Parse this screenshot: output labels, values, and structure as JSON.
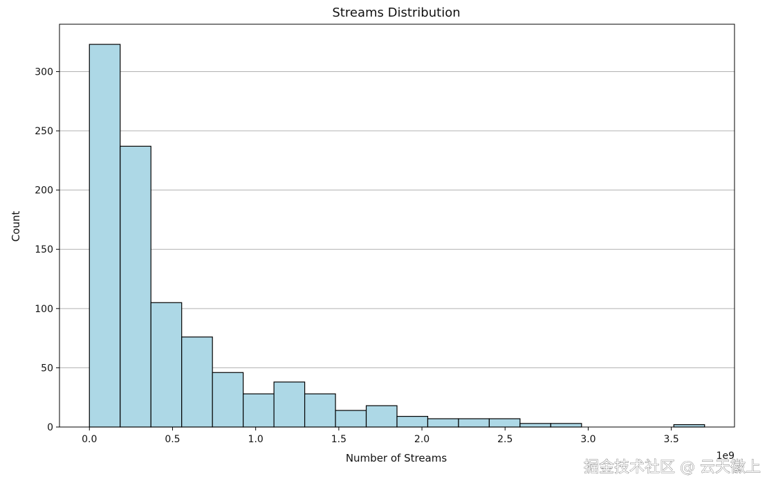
{
  "chart_data": {
    "type": "bar",
    "title": "Streams Distribution",
    "xlabel": "Number of Streams",
    "ylabel": "Count",
    "x_offset_label": "1e9",
    "bin_edges": [
      0.0,
      0.185,
      0.37,
      0.555,
      0.74,
      0.925,
      1.11,
      1.295,
      1.48,
      1.665,
      1.85,
      2.035,
      2.22,
      2.405,
      2.59,
      2.775,
      2.96,
      3.145,
      3.33,
      3.515,
      3.7
    ],
    "counts": [
      323,
      237,
      105,
      76,
      46,
      28,
      38,
      28,
      14,
      18,
      9,
      7,
      7,
      7,
      3,
      3,
      0,
      0,
      0,
      2
    ],
    "xlim": [
      -0.18,
      3.88
    ],
    "ylim": [
      0,
      340
    ],
    "x_ticks": [
      0.0,
      0.5,
      1.0,
      1.5,
      2.0,
      2.5,
      3.0,
      3.5
    ],
    "x_tick_labels": [
      "0.0",
      "0.5",
      "1.0",
      "1.5",
      "2.0",
      "2.5",
      "3.0",
      "3.5"
    ],
    "y_ticks": [
      0,
      50,
      100,
      150,
      200,
      250,
      300
    ],
    "y_tick_labels": [
      "0",
      "50",
      "100",
      "150",
      "200",
      "250",
      "300"
    ],
    "grid": "y",
    "bar_color": "#add8e6",
    "edge_color": "#000000",
    "grid_color": "#b0b0b0"
  },
  "watermark": "掘金技术社区 @ 云天徽上"
}
